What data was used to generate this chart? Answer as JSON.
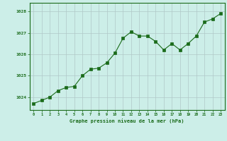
{
  "x": [
    0,
    1,
    2,
    3,
    4,
    5,
    6,
    7,
    8,
    9,
    10,
    11,
    12,
    13,
    14,
    15,
    16,
    17,
    18,
    19,
    20,
    21,
    22,
    23
  ],
  "y": [
    1023.7,
    1023.85,
    1024.0,
    1024.3,
    1024.45,
    1024.5,
    1025.0,
    1025.3,
    1025.35,
    1025.6,
    1026.05,
    1026.75,
    1027.05,
    1026.85,
    1026.85,
    1026.6,
    1026.2,
    1026.5,
    1026.2,
    1026.5,
    1026.85,
    1027.5,
    1027.65,
    1027.9
  ],
  "line_color": "#1a6b1a",
  "marker_color": "#1a6b1a",
  "bg_color": "#cceee8",
  "grid_color": "#b0c8c8",
  "xlabel": "Graphe pression niveau de la mer (hPa)",
  "xlabel_color": "#1a6b1a",
  "ylabel_ticks": [
    1024,
    1025,
    1026,
    1027,
    1028
  ],
  "xlim": [
    -0.5,
    23.5
  ],
  "ylim": [
    1023.4,
    1028.4
  ],
  "tick_color": "#1a6b1a",
  "border_color": "#1a6b1a"
}
